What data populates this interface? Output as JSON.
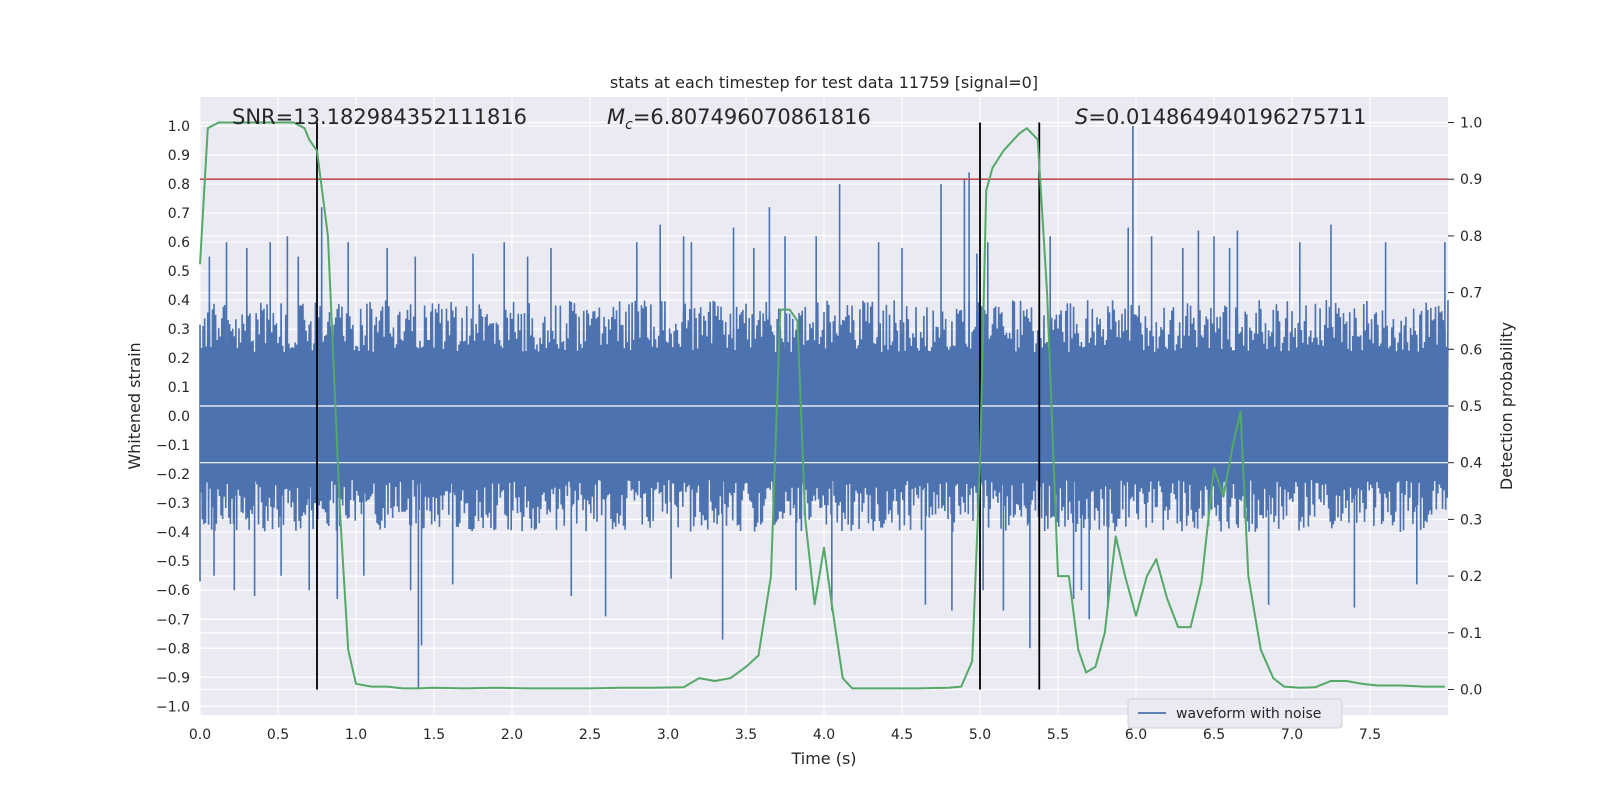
{
  "chart_data": {
    "type": "line",
    "title": "stats at each timestep for test data 11759 [signal=0]",
    "xlabel": "Time (s)",
    "ylabel_left": "Whitened strain",
    "ylabel_right": "Detection probability",
    "xlim": [
      0.0,
      8.0
    ],
    "ylim_left": [
      -1.03,
      1.1
    ],
    "ylim_right": [
      -0.045,
      1.045
    ],
    "x_ticks": [
      0.0,
      0.5,
      1.0,
      1.5,
      2.0,
      2.5,
      3.0,
      3.5,
      4.0,
      4.5,
      5.0,
      5.5,
      6.0,
      6.5,
      7.0,
      7.5
    ],
    "x_tick_labels": [
      "0.0",
      "0.5",
      "1.0",
      "1.5",
      "2.0",
      "2.5",
      "3.0",
      "3.5",
      "4.0",
      "4.5",
      "5.0",
      "5.5",
      "6.0",
      "6.5",
      "7.0",
      "7.5"
    ],
    "y_left_ticks": [
      -1.0,
      -0.9,
      -0.8,
      -0.7,
      -0.6,
      -0.5,
      -0.4,
      -0.3,
      -0.2,
      -0.1,
      0.0,
      0.1,
      0.2,
      0.3,
      0.4,
      0.5,
      0.6,
      0.7,
      0.8,
      0.9,
      1.0
    ],
    "y_left_tick_labels": [
      "−1.0",
      "−0.9",
      "−0.8",
      "−0.7",
      "−0.6",
      "−0.5",
      "−0.4",
      "−0.3",
      "−0.2",
      "−0.1",
      "0.0",
      "0.1",
      "0.2",
      "0.3",
      "0.4",
      "0.5",
      "0.6",
      "0.7",
      "0.8",
      "0.9",
      "1.0"
    ],
    "y_right_ticks": [
      0.0,
      0.1,
      0.2,
      0.3,
      0.4,
      0.5,
      0.6,
      0.7,
      0.8,
      0.9,
      1.0
    ],
    "y_right_tick_labels": [
      "0.0",
      "0.1",
      "0.2",
      "0.3",
      "0.4",
      "0.5",
      "0.6",
      "0.7",
      "0.8",
      "0.9",
      "1.0"
    ],
    "grid": true,
    "legend": {
      "placement": "lower-right",
      "entries": [
        "waveform with noise"
      ]
    },
    "annotations": {
      "snr": "SNR=13.182984352111816",
      "mc_symbol": "M",
      "mc_sub": "c",
      "mc_value": "=6.807496070861816",
      "s_symbol": "S",
      "s_value": "=0.014864940196275711"
    },
    "threshold_right": 0.9,
    "vertical_lines_x": [
      0.75,
      5.0,
      5.38
    ],
    "waveform": {
      "name": "waveform with noise",
      "color": "#4c72b0",
      "typical_abs_amplitude": 0.4,
      "spikes": [
        [
          0.0,
          -0.57
        ],
        [
          0.06,
          0.55
        ],
        [
          0.09,
          -0.55
        ],
        [
          0.17,
          0.6
        ],
        [
          0.22,
          -0.6
        ],
        [
          0.3,
          0.58
        ],
        [
          0.35,
          -0.62
        ],
        [
          0.45,
          0.6
        ],
        [
          0.52,
          -0.55
        ],
        [
          0.56,
          0.62
        ],
        [
          0.63,
          0.55
        ],
        [
          0.7,
          -0.6
        ],
        [
          0.75,
          -0.62
        ],
        [
          0.78,
          0.72
        ],
        [
          0.88,
          -0.63
        ],
        [
          0.95,
          0.6
        ],
        [
          1.05,
          -0.55
        ],
        [
          1.2,
          0.58
        ],
        [
          1.35,
          -0.6
        ],
        [
          1.38,
          0.55
        ],
        [
          1.4,
          -0.94
        ],
        [
          1.42,
          -0.79
        ],
        [
          1.62,
          -0.58
        ],
        [
          1.75,
          0.56
        ],
        [
          1.95,
          0.6
        ],
        [
          2.1,
          0.55
        ],
        [
          2.25,
          0.58
        ],
        [
          2.38,
          -0.62
        ],
        [
          2.6,
          -0.69
        ],
        [
          2.8,
          0.6
        ],
        [
          2.95,
          0.66
        ],
        [
          3.02,
          -0.56
        ],
        [
          3.1,
          0.62
        ],
        [
          3.15,
          0.6
        ],
        [
          3.35,
          -0.77
        ],
        [
          3.42,
          0.65
        ],
        [
          3.55,
          0.58
        ],
        [
          3.65,
          0.72
        ],
        [
          3.75,
          0.62
        ],
        [
          3.82,
          -0.6
        ],
        [
          3.95,
          0.62
        ],
        [
          4.05,
          -0.67
        ],
        [
          4.1,
          0.8
        ],
        [
          4.35,
          0.6
        ],
        [
          4.5,
          0.58
        ],
        [
          4.65,
          -0.65
        ],
        [
          4.75,
          0.8
        ],
        [
          4.82,
          -0.67
        ],
        [
          4.9,
          0.82
        ],
        [
          4.93,
          0.84
        ],
        [
          4.98,
          0.56
        ],
        [
          5.02,
          -0.6
        ],
        [
          5.05,
          0.6
        ],
        [
          5.15,
          -0.67
        ],
        [
          5.32,
          -0.8
        ],
        [
          5.38,
          -0.79
        ],
        [
          5.45,
          0.62
        ],
        [
          5.6,
          -0.63
        ],
        [
          5.65,
          -0.6
        ],
        [
          5.7,
          -0.7
        ],
        [
          5.82,
          -0.66
        ],
        [
          5.95,
          0.65
        ],
        [
          5.98,
          1.0
        ],
        [
          6.1,
          0.62
        ],
        [
          6.3,
          0.58
        ],
        [
          6.4,
          0.64
        ],
        [
          6.5,
          0.62
        ],
        [
          6.6,
          0.58
        ],
        [
          6.65,
          0.64
        ],
        [
          6.85,
          -0.65
        ],
        [
          7.05,
          0.6
        ],
        [
          7.25,
          0.66
        ],
        [
          7.4,
          -0.66
        ],
        [
          7.6,
          0.6
        ],
        [
          7.8,
          -0.58
        ],
        [
          7.98,
          0.6
        ]
      ]
    },
    "detection_probability": {
      "color": "#55a868",
      "x": [
        0.0,
        0.05,
        0.12,
        0.2,
        0.3,
        0.4,
        0.5,
        0.6,
        0.67,
        0.7,
        0.75,
        0.82,
        0.9,
        0.95,
        1.0,
        1.1,
        1.2,
        1.3,
        1.4,
        1.5,
        1.7,
        1.9,
        2.1,
        2.3,
        2.5,
        2.7,
        2.9,
        3.1,
        3.2,
        3.3,
        3.4,
        3.5,
        3.58,
        3.66,
        3.72,
        3.78,
        3.83,
        3.88,
        3.94,
        4.0,
        4.05,
        4.12,
        4.18,
        4.25,
        4.4,
        4.6,
        4.8,
        4.88,
        4.95,
        5.0,
        5.04,
        5.08,
        5.15,
        5.25,
        5.3,
        5.37,
        5.43,
        5.5,
        5.57,
        5.63,
        5.68,
        5.74,
        5.8,
        5.87,
        5.93,
        6.0,
        6.07,
        6.13,
        6.2,
        6.27,
        6.35,
        6.42,
        6.5,
        6.56,
        6.62,
        6.67,
        6.72,
        6.8,
        6.88,
        6.95,
        7.05,
        7.15,
        7.25,
        7.35,
        7.45,
        7.55,
        7.7,
        7.85,
        7.98
      ],
      "values": [
        0.75,
        0.99,
        1.0,
        1.0,
        1.0,
        1.0,
        1.0,
        1.0,
        0.99,
        0.97,
        0.95,
        0.8,
        0.3,
        0.07,
        0.01,
        0.005,
        0.005,
        0.002,
        0.002,
        0.003,
        0.002,
        0.003,
        0.002,
        0.002,
        0.002,
        0.003,
        0.003,
        0.004,
        0.02,
        0.015,
        0.02,
        0.04,
        0.06,
        0.2,
        0.67,
        0.67,
        0.65,
        0.3,
        0.15,
        0.25,
        0.15,
        0.02,
        0.002,
        0.002,
        0.002,
        0.002,
        0.003,
        0.005,
        0.05,
        0.4,
        0.88,
        0.92,
        0.95,
        0.98,
        0.99,
        0.97,
        0.7,
        0.2,
        0.2,
        0.07,
        0.03,
        0.04,
        0.1,
        0.27,
        0.2,
        0.13,
        0.2,
        0.23,
        0.16,
        0.11,
        0.11,
        0.19,
        0.39,
        0.34,
        0.43,
        0.49,
        0.2,
        0.07,
        0.02,
        0.005,
        0.003,
        0.004,
        0.015,
        0.015,
        0.01,
        0.007,
        0.007,
        0.005,
        0.005
      ]
    }
  },
  "colors": {
    "background": "#eaeaf2",
    "grid": "#ffffff",
    "threshold": "#c44e52",
    "vline": "#000000",
    "text": "#262626"
  }
}
